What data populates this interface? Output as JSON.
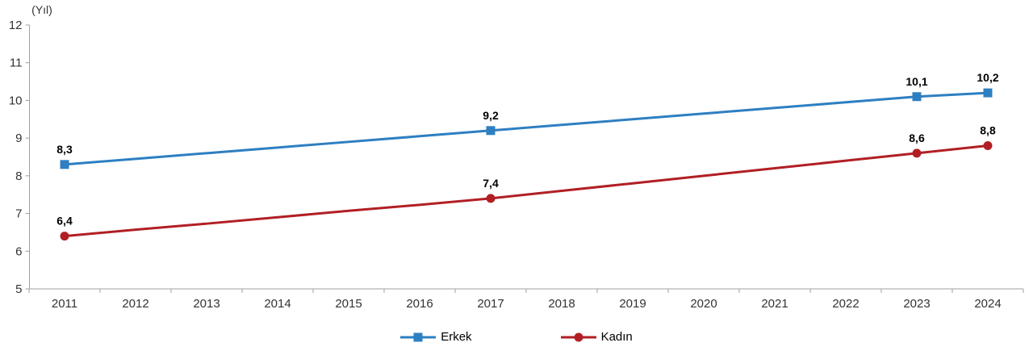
{
  "chart_data": {
    "type": "line",
    "title": "",
    "ylabel": "(Yıl)",
    "x": [
      "2011",
      "2012",
      "2013",
      "2014",
      "2015",
      "2016",
      "2017",
      "2018",
      "2019",
      "2020",
      "2021",
      "2022",
      "2023",
      "2024"
    ],
    "ylim": [
      5,
      12
    ],
    "yticks": [
      5,
      6,
      7,
      8,
      9,
      10,
      11,
      12
    ],
    "grid": false,
    "legend_position": "bottom",
    "series": [
      {
        "name": "Erkek",
        "color": "#2e7fc1",
        "marker": "square",
        "values": [
          8.3,
          8.45,
          8.6,
          8.75,
          8.9,
          9.05,
          9.2,
          9.35,
          9.5,
          9.65,
          9.8,
          9.95,
          10.1,
          10.2
        ],
        "point_labels": [
          "8,3",
          null,
          null,
          null,
          null,
          null,
          "9,2",
          null,
          null,
          null,
          null,
          null,
          "10,1",
          "10,2"
        ]
      },
      {
        "name": "Kadın",
        "color": "#b11f24",
        "marker": "circle",
        "values": [
          6.4,
          6.57,
          6.73,
          6.9,
          7.07,
          7.23,
          7.4,
          7.6,
          7.8,
          8.0,
          8.2,
          8.4,
          8.6,
          8.8
        ],
        "point_labels": [
          "6,4",
          null,
          null,
          null,
          null,
          null,
          "7,4",
          null,
          null,
          null,
          null,
          null,
          "8,6",
          "8,8"
        ]
      }
    ]
  }
}
